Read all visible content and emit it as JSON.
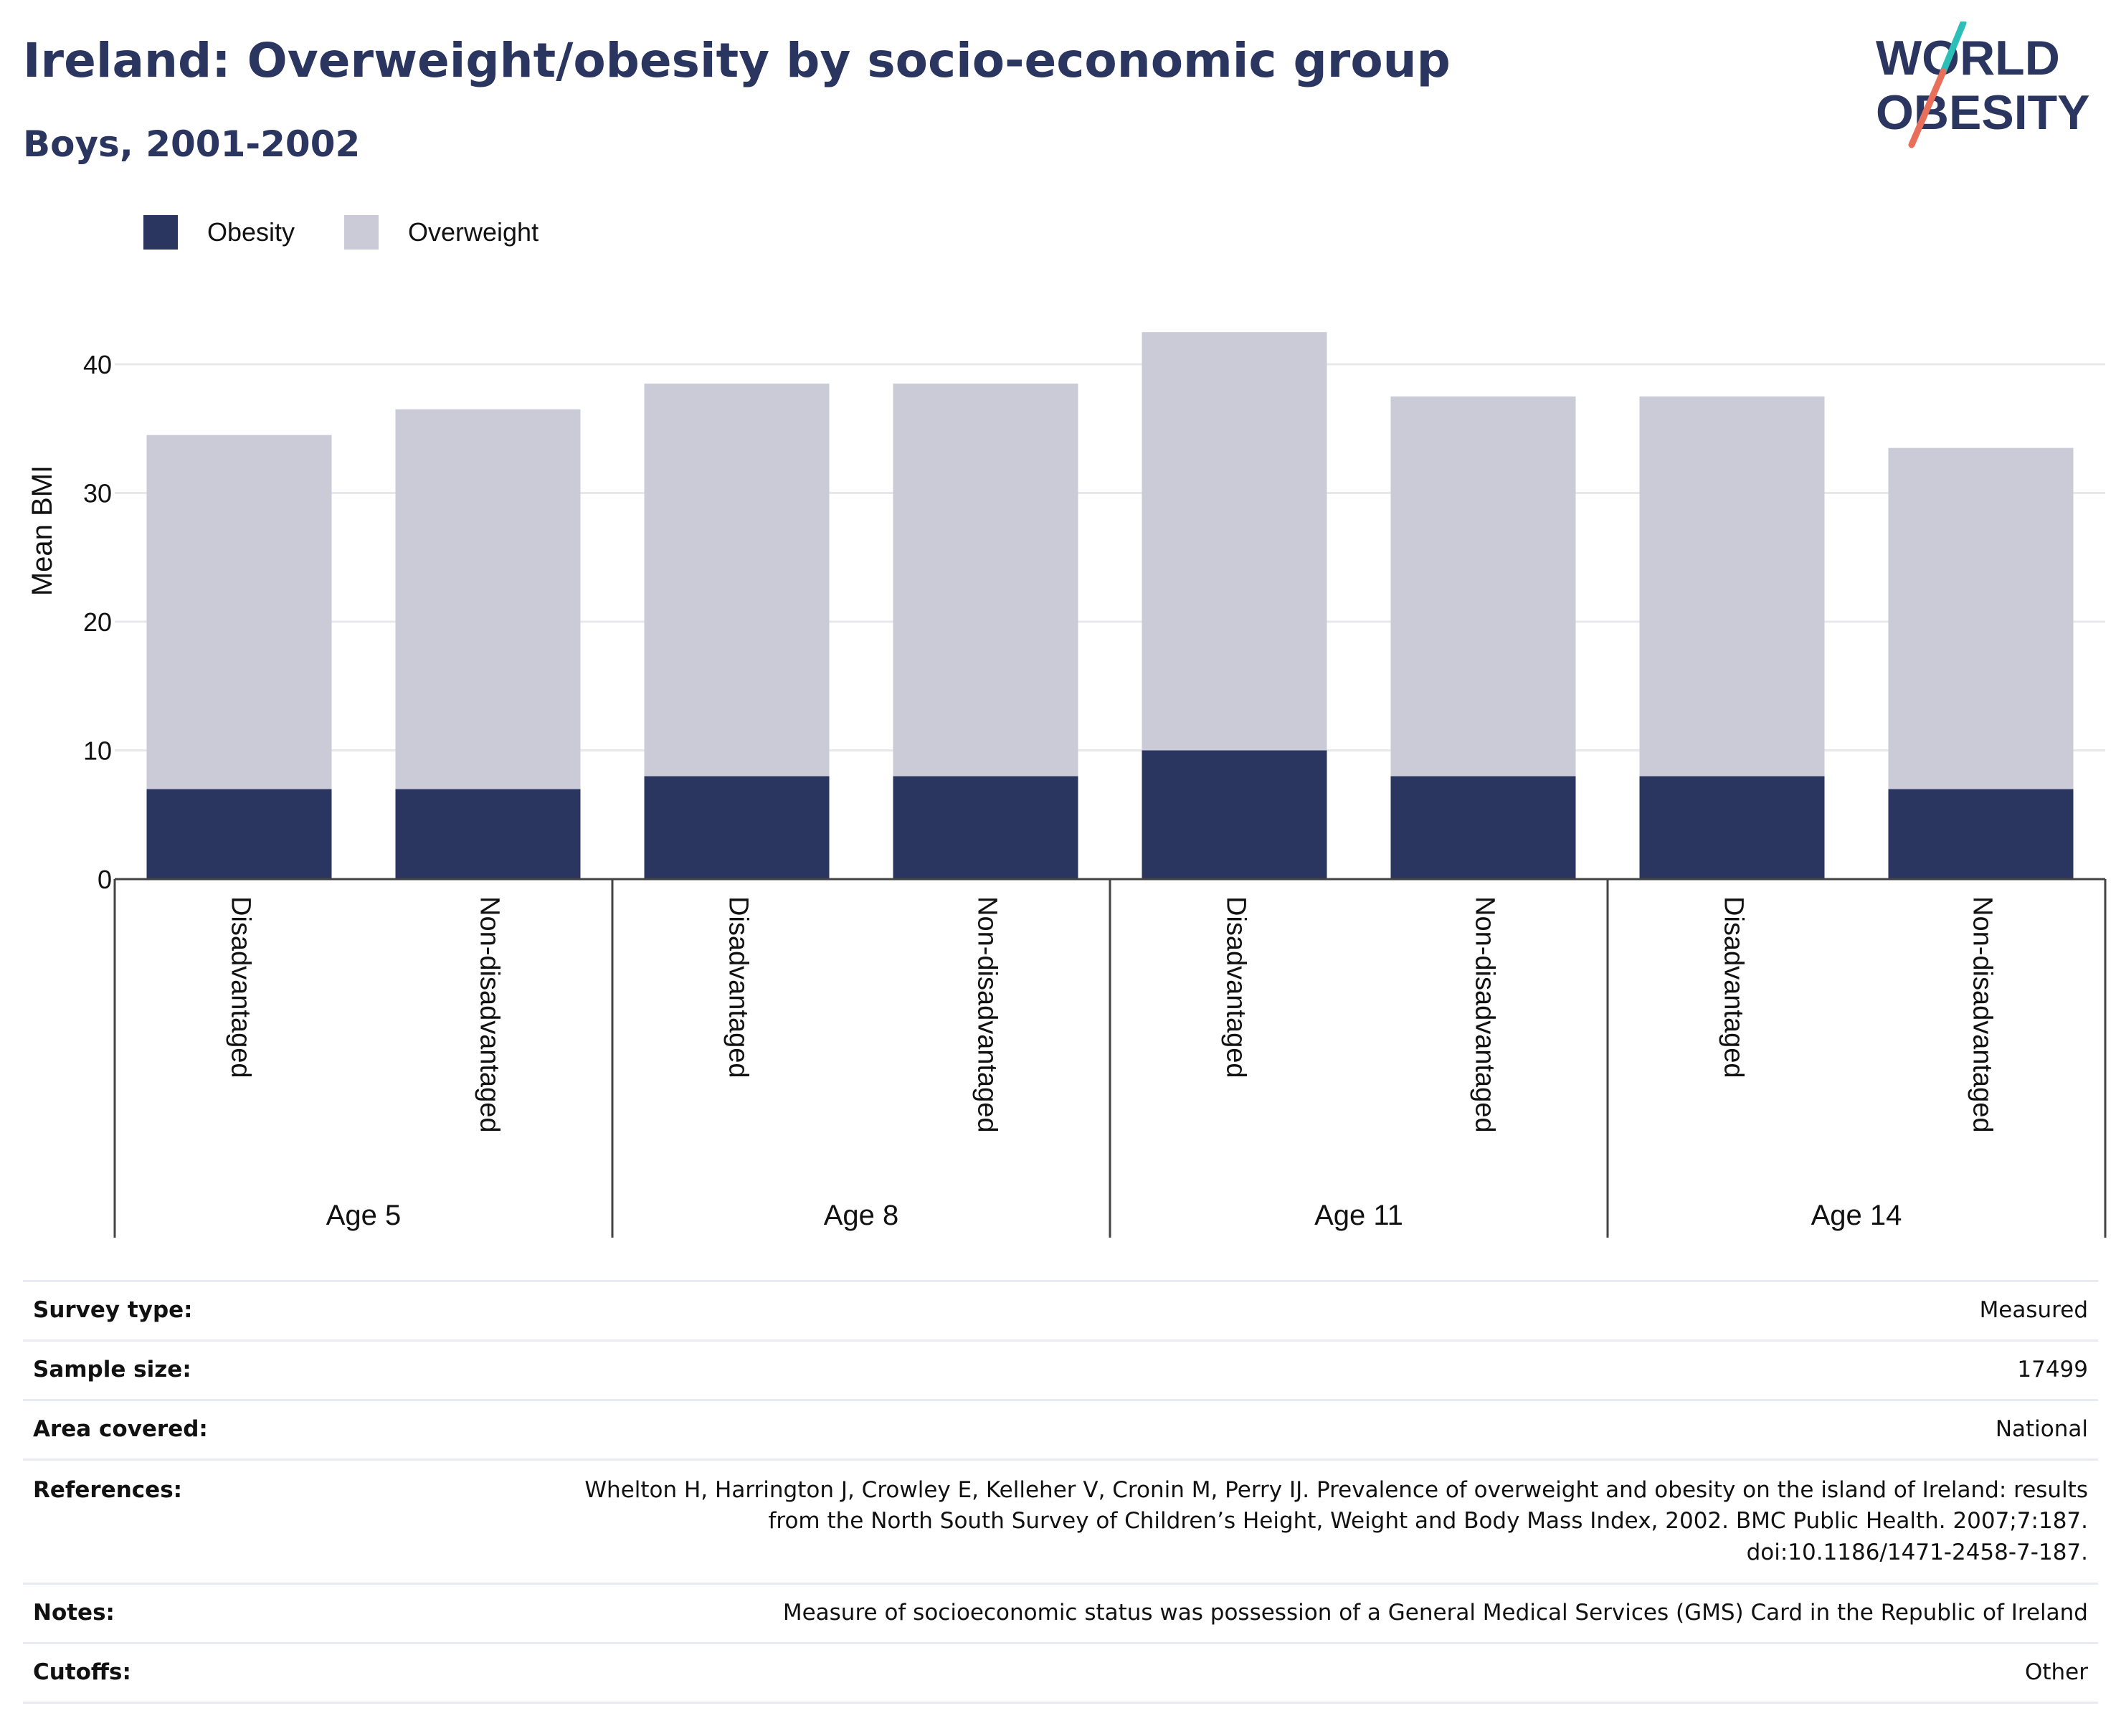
{
  "header": {
    "title": "Ireland: Overweight/obesity by socio-economic group",
    "subtitle": "Boys, 2001-2002",
    "logo_line1": "WORLD",
    "logo_line2": "OBESITY"
  },
  "colors": {
    "obesity": "#2a3560",
    "overweight": "#cacbd7",
    "title": "#2a3560",
    "logo_teal": "#2bbfb8",
    "logo_coral": "#e8705a"
  },
  "chart_data": {
    "type": "bar",
    "stacked": true,
    "ylabel": "Mean BMI",
    "ylim": [
      0,
      45
    ],
    "yticks": [
      0,
      10,
      20,
      30,
      40
    ],
    "grid": true,
    "legend_position": "top-left",
    "groups": [
      "Age 5",
      "Age 8",
      "Age 11",
      "Age 14"
    ],
    "categories": [
      "Disadvantaged",
      "Non-disadvantaged",
      "Disadvantaged",
      "Non-disadvantaged",
      "Disadvantaged",
      "Non-disadvantaged",
      "Disadvantaged",
      "Non-disadvantaged"
    ],
    "series": [
      {
        "name": "Obesity",
        "values": [
          7,
          7,
          8,
          8,
          10,
          8,
          8,
          7
        ]
      },
      {
        "name": "Overweight",
        "values": [
          27.5,
          29.5,
          30.5,
          30.5,
          32.5,
          29.5,
          29.5,
          26.5
        ]
      }
    ]
  },
  "meta": [
    {
      "key": "Survey type:",
      "value": "Measured"
    },
    {
      "key": "Sample size:",
      "value": "17499"
    },
    {
      "key": "Area covered:",
      "value": "National"
    },
    {
      "key": "References:",
      "value_lines": [
        "Whelton H, Harrington J, Crowley E, Kelleher V, Cronin M, Perry IJ. Prevalence of overweight and obesity on the island of Ireland: results",
        "from the North South Survey of Children’s Height, Weight and Body Mass Index, 2002. BMC Public Health. 2007;7:187.",
        "doi:10.1186/1471-2458-7-187."
      ]
    },
    {
      "key": "Notes:",
      "value": "Measure of socioeconomic status was possession of a General Medical Services (GMS) Card in the Republic of Ireland"
    },
    {
      "key": "Cutoffs:",
      "value": "Other"
    }
  ]
}
